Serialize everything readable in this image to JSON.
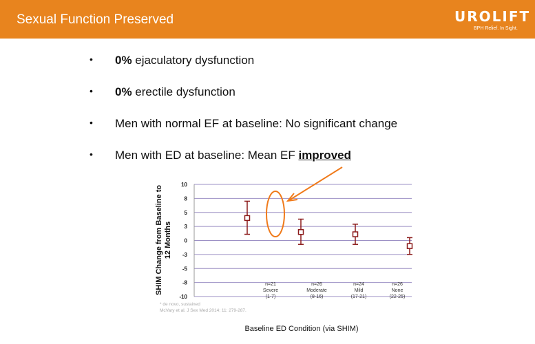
{
  "header": {
    "title": "Sexual Function Preserved",
    "logo": "UROLIFT",
    "logo_tagline": "BPH Relief. In Sight.",
    "color": "#e8841e"
  },
  "bullets": [
    {
      "bold": "0%",
      "text": " ejaculatory dysfunction"
    },
    {
      "bold": "",
      "text": "",
      "prefix": "",
      "full": ""
    },
    {
      "bold": "",
      "text": "Men with normal EF at baseline: No significant change"
    },
    {
      "bold": "improved",
      "text": "Men with ED at baseline: Mean EF "
    }
  ],
  "b2": {
    "bold": "0%",
    "text": " erectile dysfunction"
  },
  "chart_data": {
    "type": "scatter",
    "ylabel": "SHIM Change from Baseline to 12 Months",
    "xlabel": "Baseline ED Condition (via SHIM)",
    "ylim": [
      -10,
      10
    ],
    "yticks": [
      10,
      7.5,
      5,
      2.5,
      0,
      -2.5,
      -5,
      -7.5,
      -10
    ],
    "ytick_labels": [
      "10",
      "8",
      "5",
      "3",
      "0",
      "-3",
      "-5",
      "-8",
      "-10"
    ],
    "grid": true,
    "categories": [
      {
        "n": "n=21",
        "name": "Severe",
        "range": "(1-7)"
      },
      {
        "n": "n=26",
        "name": "Moderate",
        "range": "(8-16)"
      },
      {
        "n": "n=24",
        "name": "Mild",
        "range": "(17-21)"
      },
      {
        "n": "n=26",
        "name": "None",
        "range": "(22-25)"
      }
    ],
    "means": [
      4.0,
      1.5,
      1.1,
      -1.0
    ],
    "upper": [
      7.0,
      3.8,
      2.9,
      0.5
    ],
    "lower": [
      1.1,
      -0.7,
      -0.7,
      -2.5
    ],
    "marker_color": "#8b1a1a",
    "grid_color": "#9b8fc4",
    "annotation_color": "#f07a1a",
    "footnotes": [
      "* de novo, sustained",
      "McVary et al. J Sex Med 2014; 11: 279-287."
    ]
  }
}
